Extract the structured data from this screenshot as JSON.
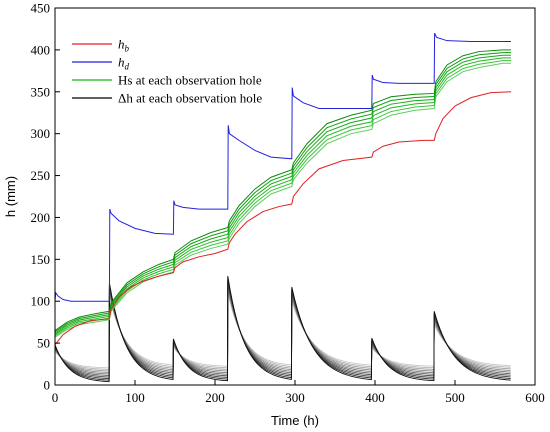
{
  "chart_data": {
    "type": "line",
    "xlabel": "Time (h)",
    "ylabel": "h (mm)",
    "xlim": [
      0,
      600
    ],
    "ylim": [
      0,
      450
    ],
    "xticks": [
      0,
      100,
      200,
      300,
      400,
      500,
      600
    ],
    "yticks": [
      0,
      50,
      100,
      150,
      200,
      250,
      300,
      350,
      400,
      450
    ],
    "grid": false,
    "legend_position": "top-left",
    "legend": [
      {
        "label": "h",
        "sub": "b",
        "color": "#e02020"
      },
      {
        "label": "h",
        "sub": "d",
        "color": "#2222dd"
      },
      {
        "label": "Hs at each observation hole",
        "sub": "",
        "color": "#18b818"
      },
      {
        "label": "Δh at each observation hole",
        "sub": "",
        "color": "#000000"
      }
    ],
    "step_times": [
      0,
      68,
      148,
      216,
      296,
      396,
      474
    ],
    "series": [
      {
        "name": "hb",
        "color": "#e02020",
        "x": [
          0,
          10,
          25,
          45,
          68,
          70,
          80,
          95,
          110,
          130,
          148,
          150,
          160,
          180,
          200,
          216,
          218,
          225,
          240,
          260,
          280,
          296,
          298,
          310,
          330,
          360,
          396,
          398,
          410,
          430,
          460,
          474,
          476,
          485,
          500,
          520,
          545,
          570
        ],
        "y": [
          48,
          60,
          70,
          77,
          79,
          90,
          105,
          117,
          124,
          130,
          134,
          140,
          147,
          153,
          157,
          162,
          170,
          180,
          195,
          207,
          213,
          216,
          225,
          240,
          258,
          268,
          272,
          278,
          285,
          290,
          292,
          292,
          300,
          318,
          333,
          343,
          349,
          350
        ]
      },
      {
        "name": "hd",
        "color": "#2222dd",
        "x": [
          0,
          1,
          4,
          10,
          20,
          40,
          68,
          68.5,
          70,
          80,
          100,
          125,
          148,
          148.5,
          150,
          160,
          180,
          216,
          216.5,
          218,
          230,
          250,
          270,
          296,
          296.5,
          298,
          310,
          330,
          350,
          396,
          396.5,
          398,
          410,
          430,
          474,
          474.5,
          477,
          490,
          520,
          570
        ],
        "y": [
          100,
          110,
          106,
          102,
          100,
          100,
          100,
          210,
          205,
          196,
          187,
          181,
          180,
          220,
          215,
          212,
          210,
          210,
          310,
          300,
          292,
          280,
          272,
          270,
          355,
          345,
          337,
          330,
          330,
          330,
          370,
          365,
          361,
          360,
          360,
          420,
          415,
          411,
          410,
          410
        ]
      }
    ],
    "hs_family": {
      "name": "Hs at each observation hole",
      "color": "#18b818",
      "count": 6,
      "x": [
        0,
        15,
        30,
        50,
        68,
        70,
        90,
        110,
        130,
        148,
        150,
        170,
        195,
        216,
        218,
        230,
        250,
        270,
        296,
        298,
        315,
        340,
        370,
        396,
        398,
        420,
        450,
        474,
        476,
        490,
        510,
        530,
        560,
        570
      ],
      "lower": [
        57,
        66,
        72,
        75,
        78,
        88,
        110,
        123,
        130,
        135,
        143,
        155,
        163,
        168,
        175,
        193,
        213,
        228,
        237,
        245,
        265,
        288,
        300,
        305,
        312,
        322,
        328,
        330,
        344,
        362,
        374,
        379,
        384,
        384
      ],
      "upper": [
        65,
        75,
        81,
        85,
        88,
        98,
        122,
        135,
        144,
        150,
        158,
        172,
        182,
        188,
        196,
        214,
        234,
        248,
        257,
        265,
        288,
        312,
        322,
        328,
        336,
        344,
        347,
        348,
        362,
        382,
        393,
        398,
        400,
        400
      ]
    },
    "dh_family": {
      "name": "Δh at each observation hole",
      "color": "#000000",
      "count": 10,
      "events": [
        {
          "t0": 0,
          "t1": 68,
          "peak_lo": 40,
          "peak_hi": 48,
          "end_lo": 3,
          "end_hi": 20
        },
        {
          "t0": 68,
          "t1": 148,
          "peak_lo": 105,
          "peak_hi": 122,
          "end_lo": 4,
          "end_hi": 22
        },
        {
          "t0": 148,
          "t1": 216,
          "peak_lo": 45,
          "peak_hi": 55,
          "end_lo": 4,
          "end_hi": 22
        },
        {
          "t0": 216,
          "t1": 296,
          "peak_lo": 110,
          "peak_hi": 130,
          "end_lo": 4,
          "end_hi": 22
        },
        {
          "t0": 296,
          "t1": 396,
          "peak_lo": 100,
          "peak_hi": 117,
          "end_lo": 4,
          "end_hi": 22
        },
        {
          "t0": 396,
          "t1": 474,
          "peak_lo": 44,
          "peak_hi": 56,
          "end_lo": 4,
          "end_hi": 22
        },
        {
          "t0": 474,
          "t1": 570,
          "peak_lo": 72,
          "peak_hi": 88,
          "end_lo": 4,
          "end_hi": 22
        }
      ]
    }
  }
}
